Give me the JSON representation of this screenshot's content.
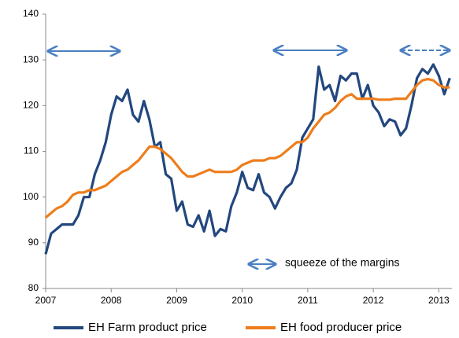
{
  "chart_data": {
    "type": "line",
    "annotation": "squeeze of the margins",
    "x": [
      2007.0,
      2007.083,
      2007.167,
      2007.25,
      2007.333,
      2007.417,
      2007.5,
      2007.583,
      2007.667,
      2007.75,
      2007.833,
      2007.917,
      2008.0,
      2008.083,
      2008.167,
      2008.25,
      2008.333,
      2008.417,
      2008.5,
      2008.583,
      2008.667,
      2008.75,
      2008.833,
      2008.917,
      2009.0,
      2009.083,
      2009.167,
      2009.25,
      2009.333,
      2009.417,
      2009.5,
      2009.583,
      2009.667,
      2009.75,
      2009.833,
      2009.917,
      2010.0,
      2010.083,
      2010.167,
      2010.25,
      2010.333,
      2010.417,
      2010.5,
      2010.583,
      2010.667,
      2010.75,
      2010.833,
      2010.917,
      2011.0,
      2011.083,
      2011.167,
      2011.25,
      2011.333,
      2011.417,
      2011.5,
      2011.583,
      2011.667,
      2011.75,
      2011.833,
      2011.917,
      2012.0,
      2012.083,
      2012.167,
      2012.25,
      2012.333,
      2012.417,
      2012.5,
      2012.583,
      2012.667,
      2012.75,
      2012.833,
      2012.917,
      2013.0,
      2013.083,
      2013.167
    ],
    "series": [
      {
        "name": "EH Farm product price",
        "color": "#23477e",
        "values": [
          87.5,
          92,
          93,
          94,
          94,
          94,
          96,
          100,
          100,
          105,
          108,
          112,
          118,
          122,
          121,
          123.5,
          118,
          116.5,
          121,
          117,
          111,
          112,
          105,
          104,
          97,
          99,
          94,
          93.5,
          96,
          92.5,
          97,
          91.5,
          93,
          92.5,
          98,
          101,
          105.5,
          102,
          101.5,
          105,
          101,
          100,
          97.5,
          100,
          102,
          103,
          106,
          113,
          115,
          117,
          128.5,
          123.5,
          124.5,
          121,
          126.5,
          125.5,
          127,
          127,
          121.5,
          124.5,
          120,
          118.5,
          115.5,
          117,
          116.5,
          113.5,
          115,
          120,
          126,
          128,
          127,
          129,
          126.5,
          122.5,
          126
        ]
      },
      {
        "name": "EH food producer price",
        "color": "#ee7d1c",
        "values": [
          95.5,
          96.5,
          97.5,
          98,
          99,
          100.5,
          101,
          101,
          101.5,
          101.5,
          102,
          102.5,
          103.5,
          104.5,
          105.5,
          106,
          107,
          108,
          109.5,
          111,
          111,
          110.5,
          109.5,
          108.5,
          107,
          105.5,
          104.5,
          104.5,
          105,
          105.5,
          106,
          105.5,
          105.5,
          105.5,
          105.5,
          106,
          107,
          107.5,
          108,
          108,
          108,
          108.5,
          108.5,
          109,
          110,
          111,
          112,
          112,
          113,
          115,
          116.5,
          118,
          118.5,
          119.5,
          121,
          122,
          122.5,
          121.5,
          121.5,
          121.5,
          121.5,
          121.3,
          121.3,
          121.3,
          121.5,
          121.5,
          121.5,
          123,
          124.5,
          125.5,
          125.8,
          125.5,
          124.5,
          124,
          124
        ]
      }
    ],
    "xlim": [
      2007,
      2013.2
    ],
    "xticks": [
      2007,
      2008,
      2009,
      2010,
      2011,
      2012,
      2013
    ],
    "ylim": [
      80,
      140
    ],
    "yticks": [
      80,
      90,
      100,
      110,
      120,
      130,
      140
    ]
  }
}
